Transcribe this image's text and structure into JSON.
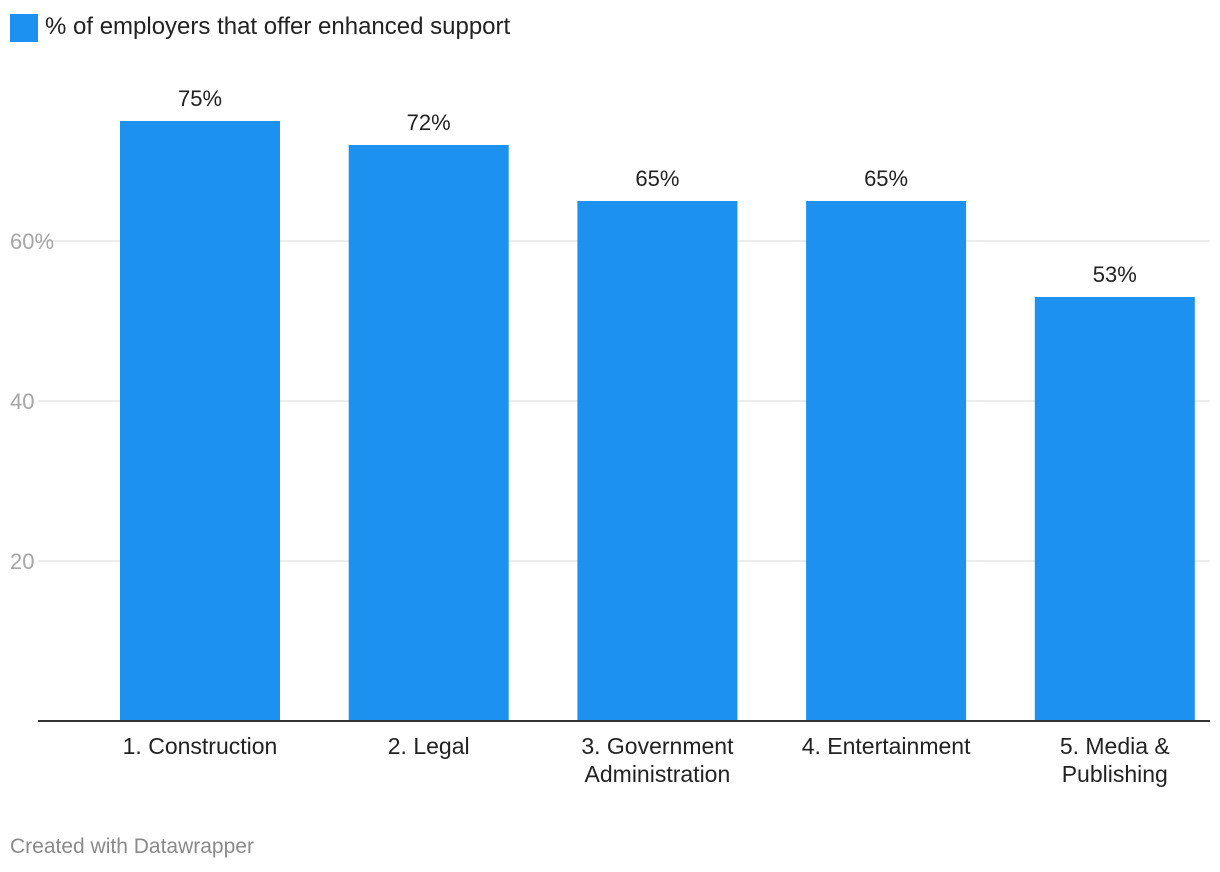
{
  "chart_data": {
    "type": "bar",
    "categories": [
      [
        "1. Construction"
      ],
      [
        "2. Legal"
      ],
      [
        "3. Government",
        "Administration"
      ],
      [
        "4. Entertainment"
      ],
      [
        "5. Media &",
        "Publishing"
      ]
    ],
    "series": [
      {
        "name": "% of employers that offer enhanced support",
        "values": [
          75,
          72,
          65,
          65,
          53
        ],
        "value_labels": [
          "75%",
          "72%",
          "65%",
          "65%",
          "53%"
        ],
        "color": "#1d91f0"
      }
    ],
    "ylim": [
      0,
      75
    ],
    "yticks": [
      {
        "value": 20,
        "label": "20"
      },
      {
        "value": 40,
        "label": "40"
      },
      {
        "value": 60,
        "label": "60%"
      }
    ],
    "grid": true,
    "legend": "top-left"
  },
  "footer": {
    "credit": "Created with Datawrapper"
  }
}
